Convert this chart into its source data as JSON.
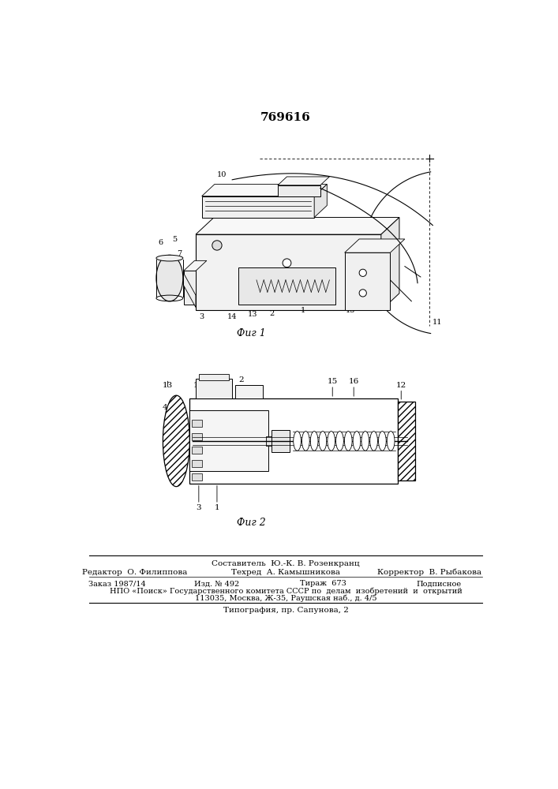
{
  "patent_number": "769616",
  "fig1_caption": "Фиг 1",
  "fig2_caption": "Фиг 2",
  "footer_line1": "Составитель  Ю.-К. В. Розенкранц",
  "footer_line2_label1": "Редактор  О. Филиппова",
  "footer_line2_label2": "Техред  А. Камышникова",
  "footer_line2_label3": "Корректор  В. Рыбакова",
  "footer_line3_label1": "Заказ 1987/14",
  "footer_line3_label2": "Изд. № 492",
  "footer_line3_label3": "Тираж  673",
  "footer_line3_label4": "Подписное",
  "footer_line4": "НПО «Поиск» Государственного комитета СССР по  делам  изобретений  и  открытий",
  "footer_line5": "113035, Москва, Ж-35, Раушская наб., д. 4/5",
  "footer_line6": "Типография, пр. Сапунова, 2",
  "bg_color": "#ffffff",
  "text_color": "#000000",
  "line_color": "#000000"
}
